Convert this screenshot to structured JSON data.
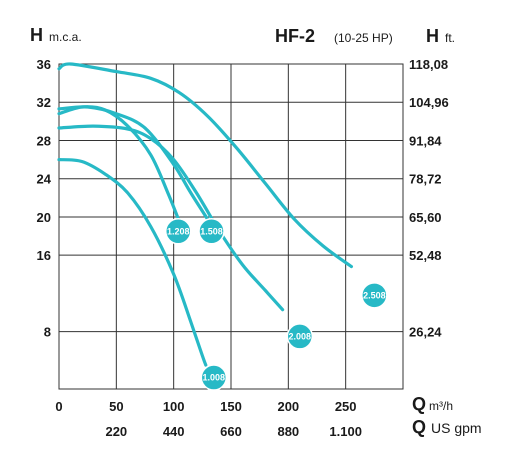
{
  "chart_data": {
    "type": "line",
    "title": "HF-2",
    "subtitle": "(10-25 HP)",
    "y_left": {
      "symbol": "H",
      "unit": "m.c.a.",
      "ticks": [
        8,
        16,
        20,
        24,
        28,
        32,
        36
      ],
      "lim": [
        2,
        36
      ]
    },
    "y_right": {
      "symbol": "H",
      "unit": "ft.",
      "ticks": [
        "26,24",
        "52,48",
        "65,60",
        "78,72",
        "91,84",
        "104,96",
        "118,08"
      ]
    },
    "x_primary": {
      "symbol": "Q",
      "unit": "m³/h",
      "ticks": [
        0,
        50,
        100,
        150,
        200,
        250
      ],
      "lim": [
        0,
        300
      ]
    },
    "x_secondary": {
      "symbol": "Q",
      "unit": "US gpm",
      "ticks": [
        "220",
        "440",
        "660",
        "880",
        "1.100"
      ]
    },
    "grid": true,
    "series": [
      {
        "name": "1.008",
        "label_at": [
          135,
          3.2
        ],
        "points": [
          [
            0,
            26
          ],
          [
            20,
            25.8
          ],
          [
            40,
            24.5
          ],
          [
            60,
            22.5
          ],
          [
            80,
            19
          ],
          [
            100,
            14
          ],
          [
            115,
            9
          ],
          [
            125,
            5.5
          ],
          [
            128,
            4.5
          ]
        ]
      },
      {
        "name": "1.208",
        "label_at": [
          104,
          18.5
        ],
        "points": [
          [
            0,
            30.8
          ],
          [
            20,
            31.5
          ],
          [
            40,
            31.2
          ],
          [
            60,
            29.5
          ],
          [
            80,
            26.5
          ],
          [
            95,
            22.5
          ],
          [
            105,
            19.5
          ]
        ]
      },
      {
        "name": "1.508",
        "label_at": [
          133,
          18.5
        ],
        "points": [
          [
            0,
            31.3
          ],
          [
            25,
            31.5
          ],
          [
            50,
            30.8
          ],
          [
            75,
            29.3
          ],
          [
            100,
            25.5
          ],
          [
            115,
            22.5
          ],
          [
            131,
            19.5
          ]
        ]
      },
      {
        "name": "2.008",
        "label_at": [
          210,
          7.5
        ],
        "points": [
          [
            0,
            29.3
          ],
          [
            30,
            29.5
          ],
          [
            60,
            29.2
          ],
          [
            80,
            28.2
          ],
          [
            100,
            26
          ],
          [
            120,
            22.5
          ],
          [
            140,
            18.5
          ],
          [
            160,
            15
          ],
          [
            180,
            12.3
          ],
          [
            195,
            10.3
          ]
        ]
      },
      {
        "name": "2.508",
        "label_at": [
          275,
          11.8
        ],
        "points": [
          [
            0,
            35.5
          ],
          [
            10,
            36
          ],
          [
            50,
            35.2
          ],
          [
            80,
            34.5
          ],
          [
            105,
            33
          ],
          [
            130,
            30.5
          ],
          [
            155,
            27.2
          ],
          [
            180,
            23.5
          ],
          [
            205,
            19.8
          ],
          [
            230,
            17
          ],
          [
            255,
            14.8
          ]
        ]
      }
    ]
  }
}
